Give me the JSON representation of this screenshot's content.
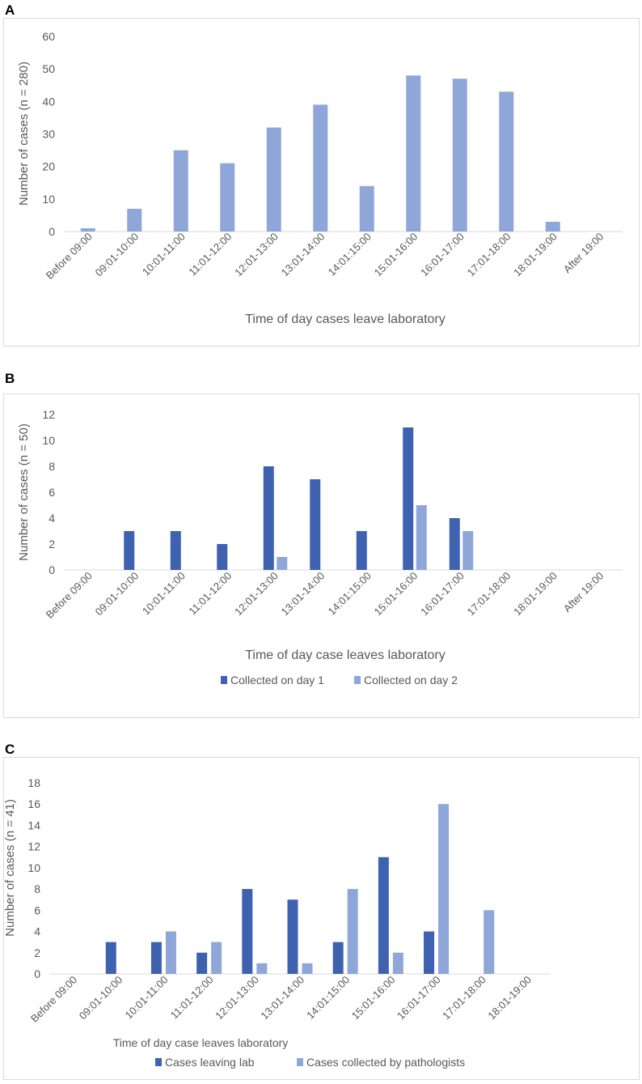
{
  "panels": [
    {
      "label": "A"
    },
    {
      "label": "B"
    },
    {
      "label": "C"
    }
  ],
  "chart_data": [
    {
      "type": "bar",
      "panel": "A",
      "categories": [
        "Before 09:00",
        "09:01-10:00",
        "10:01-11:00",
        "11:01-12:00",
        "12:01-13:00",
        "13:01-14:00",
        "14:01:15:00",
        "15:01-16:00",
        "16:01-17:00",
        "17:01-18:00",
        "18:01-19:00",
        "After 19:00"
      ],
      "series": [
        {
          "name": "Cases",
          "color": "#8FA6D9",
          "values": [
            1,
            7,
            25,
            21,
            32,
            39,
            14,
            48,
            47,
            43,
            3,
            0
          ]
        }
      ],
      "ylim": [
        0,
        60
      ],
      "yticks": [
        0,
        10,
        20,
        30,
        40,
        50,
        60
      ],
      "ylabel": "Number of cases (n = 280)",
      "xlabel": "Time of day cases leave laboratory",
      "legend": []
    },
    {
      "type": "bar",
      "panel": "B",
      "categories": [
        "Before 09:00",
        "09:01-10:00",
        "10:01-11:00",
        "11:01-12:00",
        "12:01-13:00",
        "13:01-14:00",
        "14:01:15:00",
        "15:01-16:00",
        "16:01-17:00",
        "17:01-18:00",
        "18:01-19:00",
        "After 19:00"
      ],
      "series": [
        {
          "name": "Collected on day 1",
          "color": "#3F62B0",
          "values": [
            0,
            3,
            3,
            2,
            8,
            7,
            3,
            11,
            4,
            0,
            0,
            0
          ]
        },
        {
          "name": "Collected on day 2",
          "color": "#8FA6D9",
          "values": [
            0,
            0,
            0,
            0,
            1,
            0,
            0,
            5,
            3,
            0,
            0,
            0
          ]
        }
      ],
      "ylim": [
        0,
        12
      ],
      "yticks": [
        0,
        2,
        4,
        6,
        8,
        10,
        12
      ],
      "ylabel": "Number of cases (n = 50)",
      "xlabel": "Time of day case leaves laboratory",
      "legend": [
        "Collected on day 1",
        "Collected on day 2"
      ]
    },
    {
      "type": "bar",
      "panel": "C",
      "categories": [
        "Before 09:00",
        "09:01-10:00",
        "10:01-11:00",
        "11:01-12:00",
        "12:01-13:00",
        "13:01-14:00",
        "14:01:15:00",
        "15:01-16:00",
        "16:01-17:00",
        "17:01-18:00",
        "18:01-19:00"
      ],
      "series": [
        {
          "name": "Cases leaving lab",
          "color": "#3F62B0",
          "values": [
            0,
            3,
            3,
            2,
            8,
            7,
            3,
            11,
            4,
            0,
            0
          ]
        },
        {
          "name": "Cases collected by pathologists",
          "color": "#8FA6D9",
          "values": [
            0,
            0,
            4,
            3,
            1,
            1,
            8,
            2,
            16,
            6,
            0
          ]
        }
      ],
      "ylim": [
        0,
        18
      ],
      "yticks": [
        0,
        2,
        4,
        6,
        8,
        10,
        12,
        14,
        16,
        18
      ],
      "ylabel": "Number of cases (n = 41)",
      "xlabel": "Time of day case leaves laboratory",
      "legend": [
        "Cases leaving lab",
        "Cases collected by pathologists"
      ]
    }
  ]
}
